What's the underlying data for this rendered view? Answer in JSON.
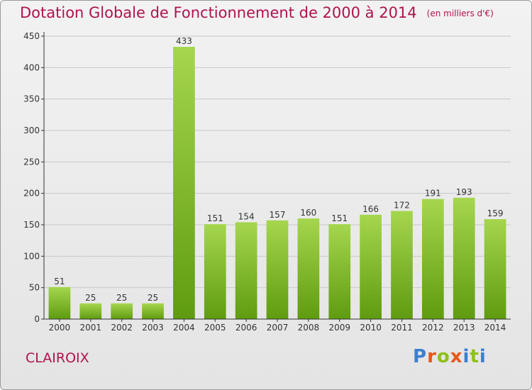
{
  "title": "Dotation Globale de Fonctionnement de 2000 à 2014",
  "subtitle": "(en milliers d'€)",
  "commune": "CLAIROIX",
  "logo": {
    "text": "Proxiti",
    "letters": [
      {
        "ch": "P",
        "color": "#3a7fd1"
      },
      {
        "ch": "r",
        "color": "#e8571a"
      },
      {
        "ch": "o",
        "color": "#8fc11b"
      },
      {
        "ch": "x",
        "color": "#e8571a"
      },
      {
        "ch": "i",
        "color": "#3a7fd1"
      },
      {
        "ch": "t",
        "color": "#8fc11b"
      },
      {
        "ch": "i",
        "color": "#3a7fd1"
      }
    ]
  },
  "colors": {
    "title": "#b0124f",
    "bar_top": "#a5d64e",
    "bar_bottom": "#5f9b10",
    "grid": "#c8c8c8",
    "axis": "#333333"
  },
  "chart_data": {
    "type": "bar",
    "categories": [
      "2000",
      "2001",
      "2002",
      "2003",
      "2004",
      "2005",
      "2006",
      "2007",
      "2008",
      "2009",
      "2010",
      "2011",
      "2012",
      "2013",
      "2014"
    ],
    "values": [
      51,
      25,
      25,
      25,
      433,
      151,
      154,
      157,
      160,
      151,
      166,
      172,
      191,
      193,
      159
    ],
    "ylim": [
      0,
      450
    ],
    "yticks": [
      0,
      50,
      100,
      150,
      200,
      250,
      300,
      350,
      400,
      450
    ],
    "grid": true,
    "data_labels": true
  }
}
